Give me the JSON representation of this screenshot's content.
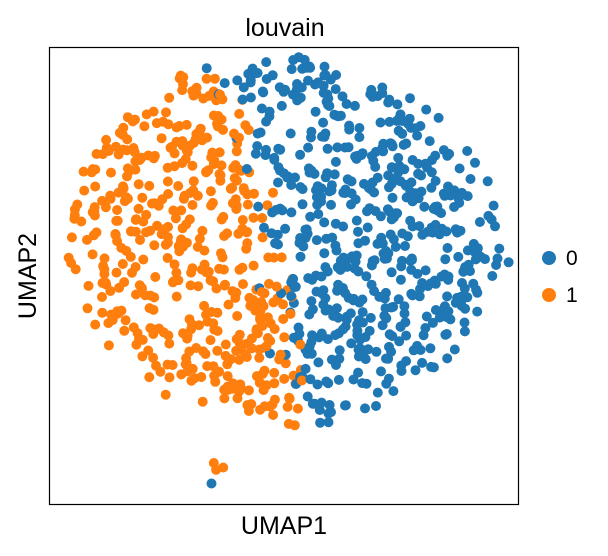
{
  "chart_data": {
    "type": "scatter",
    "title": "louvain",
    "xlabel": "UMAP1",
    "ylabel": "UMAP2",
    "grid": false,
    "xticks": false,
    "yticks": false,
    "xlim": [
      0,
      10
    ],
    "ylim": [
      0,
      10
    ],
    "legend_position": "right",
    "point_count_per_cluster": [
      560,
      470
    ],
    "series": [
      {
        "name": "0",
        "color": "#1f77b4"
      },
      {
        "name": "1",
        "color": "#ff7f0e"
      }
    ]
  }
}
